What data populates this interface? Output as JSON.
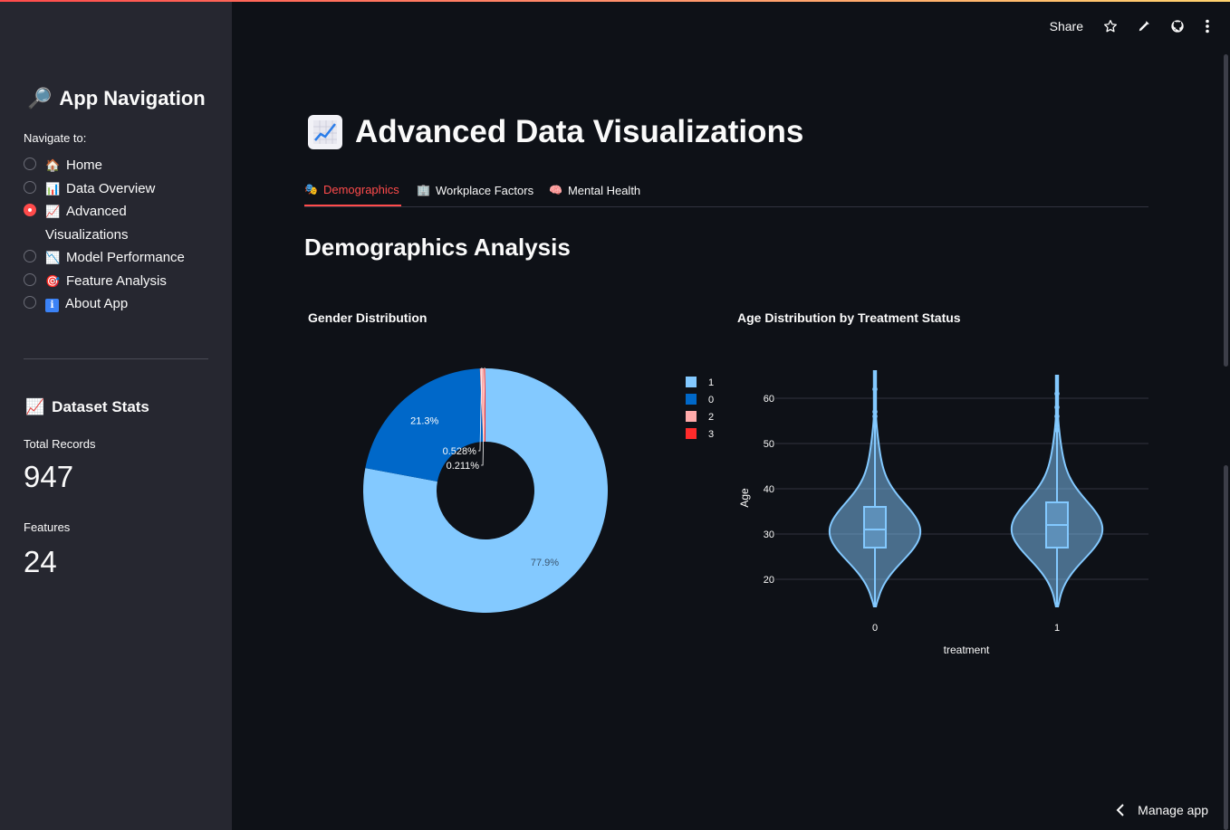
{
  "header": {
    "share_label": "Share",
    "icons": [
      "star-icon",
      "pencil-icon",
      "github-icon",
      "more-vertical-icon"
    ]
  },
  "sidebar": {
    "title": "App Navigation",
    "title_icon": "magnifier-icon",
    "nav_label": "Navigate to:",
    "items": [
      {
        "label": "Home",
        "icon": "house-icon",
        "glyph": "🏠",
        "selected": false
      },
      {
        "label": "Data Overview",
        "icon": "bar-chart-icon",
        "glyph": "📊",
        "selected": false
      },
      {
        "label": "Advanced Visualizations",
        "icon": "chart-increasing-icon",
        "glyph": "📈",
        "selected": true
      },
      {
        "label": "Model Performance",
        "icon": "chart-decreasing-icon",
        "glyph": "📉",
        "selected": false
      },
      {
        "label": "Feature Analysis",
        "icon": "target-icon",
        "glyph": "🎯",
        "selected": false
      },
      {
        "label": "About App",
        "icon": "info-icon",
        "glyph": "ℹ",
        "selected": false
      }
    ],
    "stats_title": "Dataset Stats",
    "stats_icon": "chart-increasing-icon",
    "metrics": [
      {
        "label": "Total Records",
        "value": "947"
      },
      {
        "label": "Features",
        "value": "24"
      }
    ]
  },
  "main": {
    "title": "Advanced Data Visualizations",
    "title_icon": "chart-increasing-icon",
    "tabs": [
      {
        "label": "Demographics",
        "icon": "performing-arts-icon",
        "glyph": "🎭",
        "active": true
      },
      {
        "label": "Workplace Factors",
        "icon": "office-building-icon",
        "glyph": "🏢",
        "active": false
      },
      {
        "label": "Mental Health",
        "icon": "brain-icon",
        "glyph": "🧠",
        "active": false
      }
    ],
    "section_title": "Demographics Analysis",
    "charts": [
      {
        "title": "Gender Distribution"
      },
      {
        "title": "Age Distribution by Treatment Status"
      }
    ]
  },
  "footer": {
    "manage_app_label": "Manage app"
  },
  "colors": {
    "accent": "#ff4b4b",
    "background": "#0e1117",
    "sidebar_bg": "#262730",
    "pie_1": "#83c9ff",
    "pie_0": "#0068c9",
    "pie_2": "#ffabab",
    "pie_3": "#ff2b2b",
    "violin": "#83c9ff"
  },
  "chart_data": [
    {
      "type": "pie",
      "title": "Gender Distribution",
      "hole": true,
      "labels": [
        "1",
        "0",
        "2",
        "3"
      ],
      "values": [
        77.9,
        21.3,
        0.528,
        0.211
      ],
      "value_labels": [
        "77.9%",
        "21.3%",
        "0.528%",
        "0.211%"
      ],
      "legend": "right"
    },
    {
      "type": "violin",
      "title": "Age Distribution by Treatment Status",
      "xlabel": "treatment",
      "ylabel": "Age",
      "categories": [
        "0",
        "1"
      ],
      "yticks": [
        20,
        30,
        40,
        50,
        60
      ],
      "ylim": [
        12,
        68
      ],
      "grid": true,
      "series": [
        {
          "category": "0",
          "min": 14,
          "q1": 27,
          "median": 31,
          "q3": 36,
          "max": 66,
          "outliers": [
            56,
            57,
            62
          ]
        },
        {
          "category": "1",
          "min": 14,
          "q1": 27,
          "median": 32,
          "q3": 37,
          "max": 65,
          "outliers": [
            53,
            56,
            58,
            61
          ]
        }
      ]
    }
  ]
}
